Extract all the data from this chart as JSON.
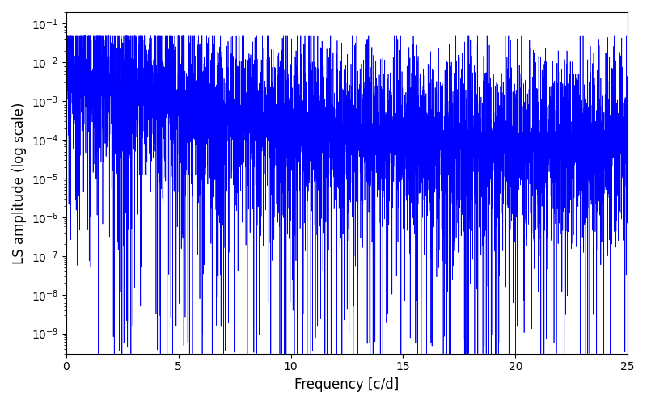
{
  "xlabel": "Frequency [c/d]",
  "ylabel": "LS amplitude (log scale)",
  "line_color": "#0000ff",
  "xlim": [
    0,
    25
  ],
  "ylim": [
    3e-10,
    0.2
  ],
  "x_ticks": [
    0,
    5,
    10,
    15,
    20,
    25
  ],
  "figsize": [
    8.0,
    5.0
  ],
  "dpi": 100,
  "seed": 12345,
  "n_points": 12000,
  "freq_max": 25.0,
  "background_color": "#ffffff"
}
